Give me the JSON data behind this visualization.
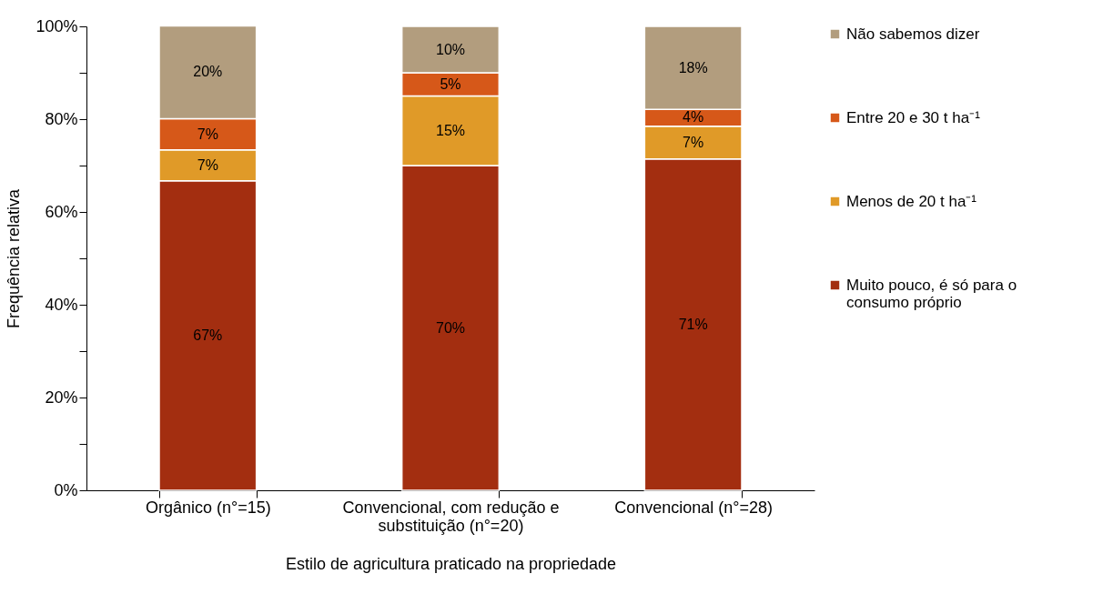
{
  "chart_data": {
    "type": "bar",
    "stacked": true,
    "xlabel": "Estilo de agricultura praticado na propriedade",
    "ylabel": "Frequência relativa",
    "categories": [
      "Orgânico (n°=15)",
      "Convencional, com redução e substituição (n°=20)",
      "Convencional (n°=28)"
    ],
    "series": [
      {
        "name": "Muito pouco, é só para o consumo próprio",
        "color": "#a32e10",
        "values": [
          66.7,
          70,
          71.4
        ],
        "value_labels": [
          "67%",
          "70%",
          "71%"
        ]
      },
      {
        "name": "Menos de 20 t ha⁻¹",
        "color": "#e09a28",
        "values": [
          6.7,
          15,
          7.1
        ],
        "value_labels": [
          "7%",
          "15%",
          "7%"
        ]
      },
      {
        "name": "Entre 20 e 30  t ha⁻¹",
        "color": "#d65819",
        "values": [
          6.7,
          5,
          3.6
        ],
        "value_labels": [
          "7%",
          "5%",
          "4%"
        ]
      },
      {
        "name": "Não sabemos dizer",
        "color": "#b29d7e",
        "values": [
          20,
          10,
          17.9
        ],
        "value_labels": [
          "20%",
          "10%",
          "18%"
        ]
      }
    ],
    "ylim": [
      0,
      100
    ],
    "yticks": [
      {
        "value": 0,
        "label": "0%"
      },
      {
        "value": 10,
        "label": null
      },
      {
        "value": 20,
        "label": "20%"
      },
      {
        "value": 30,
        "label": null
      },
      {
        "value": 40,
        "label": "40%"
      },
      {
        "value": 50,
        "label": null
      },
      {
        "value": 60,
        "label": "60%"
      },
      {
        "value": 70,
        "label": null
      },
      {
        "value": 80,
        "label": "80%"
      },
      {
        "value": 90,
        "label": null
      },
      {
        "value": 100,
        "label": "100%"
      }
    ],
    "legend": "right",
    "grid": false
  }
}
